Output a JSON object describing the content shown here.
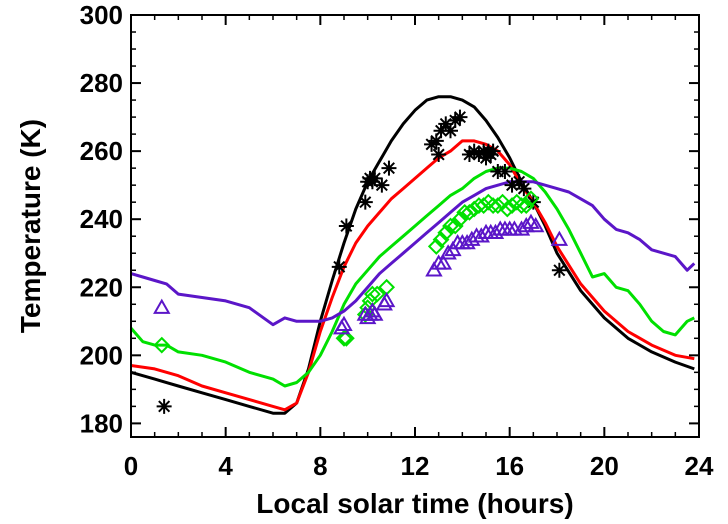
{
  "chart_data": {
    "type": "line",
    "title": "",
    "xlabel": "Local solar time (hours)",
    "ylabel": "Temperature (K)",
    "xlim": [
      0,
      24
    ],
    "ylim": [
      176,
      300
    ],
    "xticks": [
      0,
      4,
      8,
      12,
      16,
      20,
      24
    ],
    "yticks": [
      180,
      200,
      220,
      240,
      260,
      280,
      300
    ],
    "grid": false,
    "legend": "none",
    "series": [
      {
        "style": "line",
        "color": "#000000",
        "x": [
          0,
          1,
          2,
          3,
          4,
          5,
          6,
          6.5,
          7,
          7.5,
          8,
          8.5,
          9,
          9.5,
          10,
          10.5,
          11,
          11.5,
          12,
          12.5,
          13,
          13.5,
          14,
          14.5,
          15,
          15.5,
          16,
          16.5,
          17,
          17.5,
          18,
          19,
          20,
          21,
          22,
          23,
          23.8
        ],
        "values": [
          195,
          193,
          191,
          189,
          187,
          185,
          183,
          183,
          186,
          196,
          210,
          222,
          233,
          243,
          251,
          257,
          263,
          268,
          272,
          275,
          276,
          276,
          275,
          273,
          269,
          264,
          258,
          251,
          245,
          238,
          230,
          219,
          211,
          205,
          201,
          198,
          196
        ]
      },
      {
        "style": "line",
        "color": "#ff0000",
        "x": [
          0,
          1,
          2,
          3,
          4,
          5,
          6,
          6.5,
          7,
          7.5,
          8,
          8.5,
          9,
          9.5,
          10,
          10.5,
          11,
          11.5,
          12,
          12.5,
          13,
          13.5,
          14,
          14.5,
          15,
          15.5,
          16,
          16.5,
          17,
          17.5,
          18,
          19,
          20,
          21,
          22,
          23,
          23.8
        ],
        "values": [
          197,
          196,
          194,
          191,
          189,
          187,
          185,
          184,
          186,
          195,
          207,
          217,
          226,
          233,
          238,
          242,
          246,
          249,
          252,
          255,
          258,
          260,
          263,
          263,
          262,
          260,
          256,
          250,
          245,
          239,
          232,
          221,
          213,
          207,
          203,
          200,
          199
        ]
      },
      {
        "style": "line",
        "color": "#00e000",
        "x": [
          0,
          0.5,
          1,
          1.5,
          2,
          3,
          4,
          5,
          6,
          6.5,
          7,
          7.5,
          8,
          8.5,
          9,
          9.5,
          10,
          10.5,
          11,
          11.5,
          12,
          12.5,
          13,
          13.5,
          14,
          14.5,
          15,
          15.5,
          16,
          16.5,
          17,
          17.5,
          18,
          18.5,
          19,
          19.5,
          20,
          20.5,
          21,
          21.5,
          22,
          22.5,
          23,
          23.5,
          23.8
        ],
        "values": [
          208,
          204,
          203,
          203,
          201,
          200,
          198,
          195,
          193,
          191,
          192,
          195,
          200,
          207,
          215,
          221,
          225,
          229,
          232,
          235,
          238,
          241,
          244,
          247,
          249,
          252,
          254,
          255,
          255,
          254,
          252,
          248,
          243,
          237,
          230,
          223,
          224,
          220,
          219,
          215,
          210,
          207,
          206,
          210,
          211
        ]
      },
      {
        "style": "line",
        "color": "#5b16c8",
        "x": [
          0,
          0.5,
          1,
          1.5,
          2,
          3,
          4,
          5,
          6,
          6.5,
          7,
          7.5,
          8,
          8.5,
          9,
          9.5,
          10,
          10.5,
          11,
          11.5,
          12,
          12.5,
          13,
          13.5,
          14,
          14.5,
          15,
          15.5,
          16,
          16.5,
          17,
          17.5,
          18,
          18.5,
          19,
          19.5,
          20,
          20.5,
          21,
          21.5,
          22,
          22.5,
          23,
          23.5,
          23.8
        ],
        "values": [
          224,
          223,
          222,
          221,
          218,
          217,
          216,
          214,
          209,
          211,
          210,
          210,
          210,
          211,
          213,
          216,
          220,
          224,
          227,
          230,
          233,
          236,
          239,
          242,
          245,
          247,
          249,
          250,
          251,
          251,
          251,
          250,
          249,
          248,
          246,
          244,
          240,
          237,
          236,
          234,
          231,
          230,
          229,
          225,
          227
        ]
      },
      {
        "style": "markers",
        "marker": "asterisk",
        "color": "#000000",
        "x": [
          1.4,
          8.8,
          9.1,
          9.9,
          10.0,
          10.1,
          10.2,
          10.3,
          10.6,
          10.9,
          12.7,
          12.9,
          13.0,
          13.1,
          13.3,
          13.5,
          13.7,
          13.9,
          14.3,
          14.5,
          14.7,
          14.9,
          15.0,
          15.1,
          15.2,
          15.3,
          15.5,
          15.8,
          16.1,
          16.4,
          16.6,
          17.0,
          18.1
        ],
        "values": [
          185,
          226,
          238,
          245,
          251,
          252,
          251,
          252,
          250,
          255,
          262,
          263,
          259,
          266,
          268,
          266,
          269,
          270,
          259,
          260,
          259,
          260,
          258,
          260,
          259,
          260,
          254,
          254,
          250,
          251,
          249,
          245,
          225
        ]
      },
      {
        "style": "markers",
        "marker": "diamond",
        "color": "#00e000",
        "x": [
          1.3,
          9.0,
          9.1,
          9.9,
          10.0,
          10.1,
          10.2,
          10.4,
          10.8,
          12.9,
          13.1,
          13.3,
          13.5,
          13.7,
          13.9,
          14.1,
          14.3,
          14.5,
          14.7,
          14.9,
          15.1,
          15.3,
          15.5,
          15.7,
          15.9,
          16.1,
          16.3,
          16.5,
          16.7,
          16.9
        ],
        "values": [
          203,
          205,
          205,
          212,
          214,
          216,
          218,
          218,
          220,
          232,
          234,
          236,
          238,
          238,
          240,
          242,
          242,
          243,
          244,
          244,
          245,
          244,
          244,
          245,
          243,
          244,
          245,
          244,
          244,
          246
        ]
      },
      {
        "style": "markers",
        "marker": "triangle",
        "color": "#5b16c8",
        "x": [
          1.3,
          8.9,
          9.0,
          9.9,
          10.0,
          10.1,
          10.2,
          10.3,
          10.7,
          10.8,
          12.8,
          13.0,
          13.2,
          13.4,
          13.6,
          13.8,
          14.0,
          14.2,
          14.4,
          14.6,
          14.8,
          15.0,
          15.2,
          15.4,
          15.6,
          15.8,
          16.0,
          16.2,
          16.5,
          16.7,
          16.9,
          17.1,
          18.1
        ],
        "values": [
          214,
          208,
          209,
          212,
          211,
          212,
          213,
          212,
          215,
          216,
          225,
          227,
          227,
          230,
          231,
          233,
          233,
          233,
          234,
          235,
          235,
          236,
          236,
          236,
          237,
          237,
          237,
          237,
          237,
          238,
          239,
          238,
          234
        ]
      }
    ]
  }
}
